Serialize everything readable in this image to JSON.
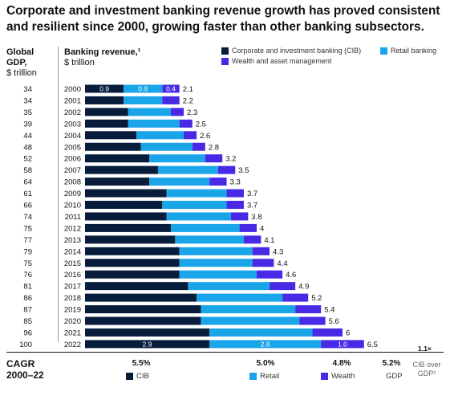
{
  "title": "Corporate and investment banking revenue growth has proved consistent and resilient since 2000, growing faster than other banking subsectors.",
  "gdp_header": {
    "line1": "Global",
    "line2": "GDP,",
    "unit": "$ trillion"
  },
  "revenue_header": {
    "label": "Banking revenue,¹",
    "unit": "$ trillion"
  },
  "legend": [
    {
      "name": "Corporate and investment banking (CIB)",
      "color": "#071d3b"
    },
    {
      "name": "Retail banking",
      "color": "#1aa5e8"
    },
    {
      "name": "Wealth and asset management",
      "color": "#4a29e6"
    }
  ],
  "chart_data": {
    "type": "bar",
    "orientation": "horizontal",
    "stacked": true,
    "categories": [
      "2000",
      "2001",
      "2002",
      "2003",
      "2004",
      "2005",
      "2006",
      "2007",
      "2008",
      "2009",
      "2010",
      "2011",
      "2012",
      "2013",
      "2014",
      "2015",
      "2016",
      "2017",
      "2018",
      "2019",
      "2020",
      "2021",
      "2022"
    ],
    "gdp": [
      34,
      34,
      35,
      39,
      44,
      48,
      52,
      58,
      64,
      61,
      66,
      74,
      75,
      77,
      79,
      75,
      76,
      81,
      86,
      87,
      85,
      96,
      100
    ],
    "series": [
      {
        "name": "Corporate and investment banking (CIB)",
        "color": "#071d3b",
        "values": [
          0.9,
          0.9,
          1.0,
          1.0,
          1.2,
          1.3,
          1.5,
          1.7,
          1.5,
          1.9,
          1.8,
          1.9,
          2.0,
          2.1,
          2.2,
          2.2,
          2.2,
          2.4,
          2.6,
          2.7,
          2.7,
          2.9,
          2.9
        ]
      },
      {
        "name": "Retail banking",
        "color": "#1aa5e8",
        "values": [
          0.9,
          0.9,
          1.0,
          1.2,
          1.1,
          1.2,
          1.3,
          1.4,
          1.4,
          1.4,
          1.5,
          1.5,
          1.6,
          1.6,
          1.7,
          1.7,
          1.8,
          1.9,
          2.0,
          2.2,
          2.3,
          2.4,
          2.6
        ]
      },
      {
        "name": "Wealth and asset management",
        "color": "#4a29e6",
        "values": [
          0.4,
          0.4,
          0.3,
          0.3,
          0.3,
          0.3,
          0.4,
          0.4,
          0.4,
          0.4,
          0.4,
          0.4,
          0.4,
          0.4,
          0.4,
          0.5,
          0.6,
          0.6,
          0.6,
          0.6,
          0.6,
          0.7,
          1.0
        ]
      }
    ],
    "totals": [
      "2.1",
      "2.2",
      "2.3",
      "2.5",
      "2.6",
      "2.8",
      "3.2",
      "3.5",
      "3.3",
      "3.7",
      "3.7",
      "3.8",
      "4",
      "4.1",
      "4.3",
      "4.4",
      "4.6",
      "4.9",
      "5.2",
      "5.4",
      "5.6",
      "6",
      "6.5"
    ],
    "labeled_segments": {
      "2000": [
        "0.9",
        "0.9",
        "0.4"
      ],
      "2022": [
        "2.9",
        "2.6",
        "1.0"
      ]
    },
    "xlim": [
      0,
      6.5
    ]
  },
  "annotation": "1.1×",
  "cagr": {
    "title_line1": "CAGR",
    "title_line2": "2000–22",
    "items": [
      {
        "value": "5.5%",
        "label": "CIB",
        "color": "#071d3b"
      },
      {
        "value": "5.0%",
        "label": "Retail",
        "color": "#1aa5e8"
      },
      {
        "value": "4.8%",
        "label": "Wealth",
        "color": "#4a29e6"
      },
      {
        "value": "5.2%",
        "label": "GDP"
      }
    ],
    "ratio_label_line1": "CIB over",
    "ratio_label_line2": "GDP²"
  }
}
